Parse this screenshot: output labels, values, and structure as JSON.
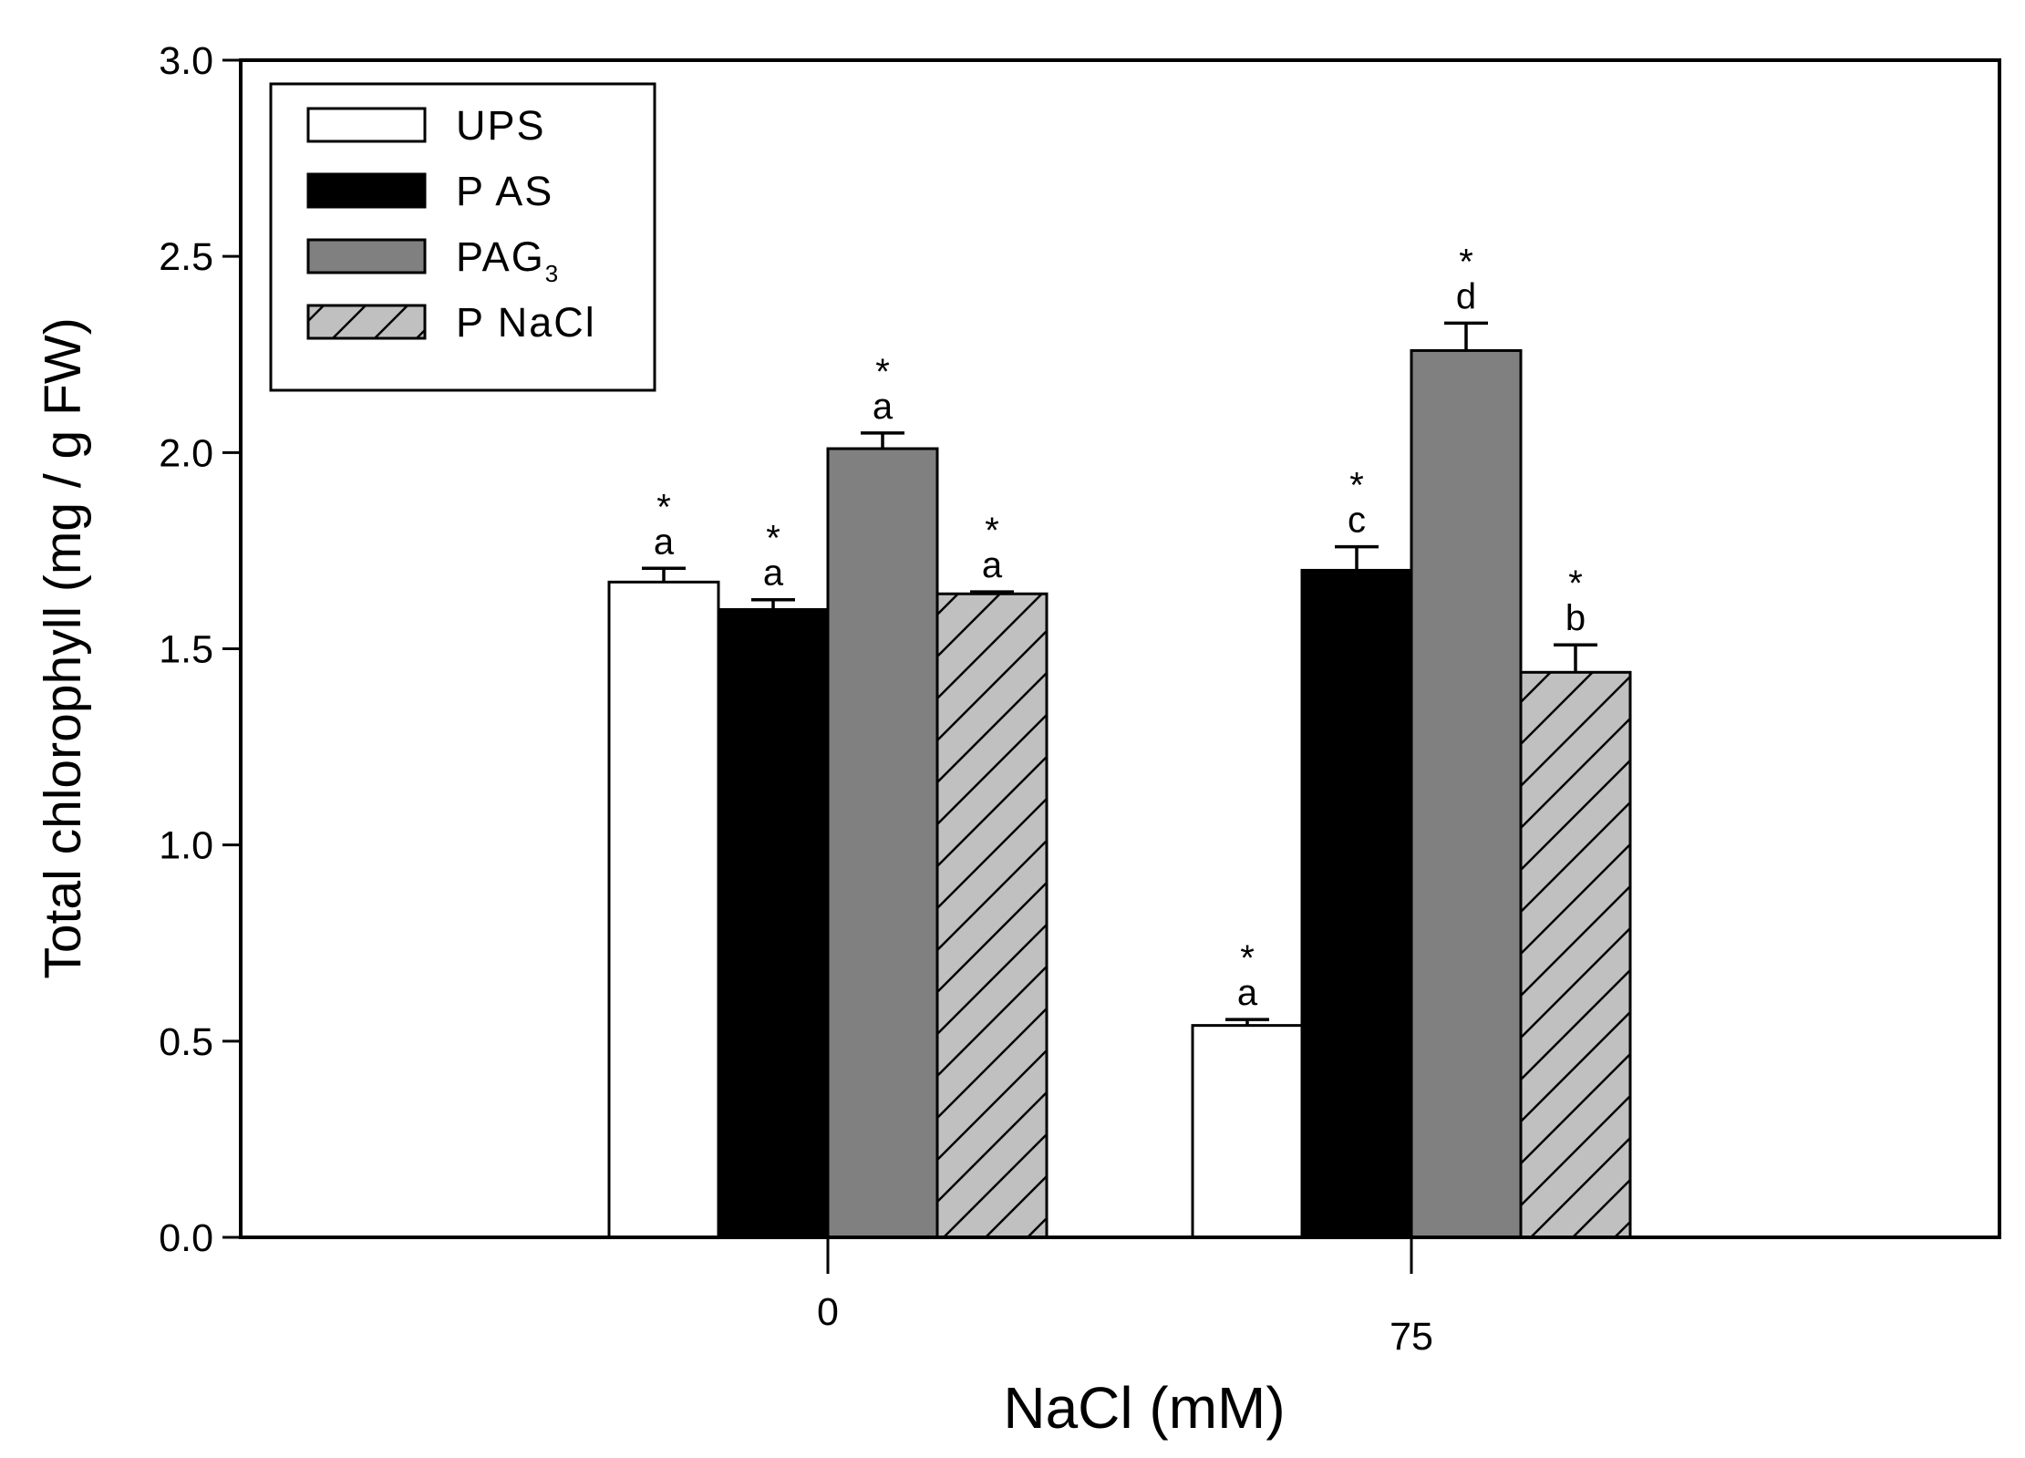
{
  "chart_data": {
    "type": "bar",
    "title": "",
    "xlabel": "NaCl (mM)",
    "ylabel": "Total chlorophyll (mg / g FW)",
    "ylim": [
      0,
      3.0
    ],
    "yticks": [
      0.0,
      0.5,
      1.0,
      1.5,
      2.0,
      2.5,
      3.0
    ],
    "ytick_labels": [
      "0.0",
      "0.5",
      "1.0",
      "1.5",
      "2.0",
      "2.5",
      "3.0"
    ],
    "categories": [
      "0",
      "75"
    ],
    "grid": false,
    "legend_position": "top-left",
    "series": [
      {
        "name": "UPS",
        "fill": "#ffffff",
        "hatch": false,
        "values": [
          1.67,
          0.54
        ],
        "errors": [
          0.035,
          0.015
        ],
        "letters": [
          "a",
          "a"
        ],
        "stars": [
          "*",
          "*"
        ]
      },
      {
        "name": "P AS",
        "fill": "#000000",
        "hatch": false,
        "values": [
          1.6,
          1.7
        ],
        "errors": [
          0.025,
          0.06
        ],
        "letters": [
          "a",
          "c"
        ],
        "stars": [
          "*",
          "*"
        ]
      },
      {
        "name": "PAG",
        "name_subscript": "3",
        "fill": "#808080",
        "hatch": false,
        "values": [
          2.01,
          2.26
        ],
        "errors": [
          0.04,
          0.07
        ],
        "letters": [
          "a",
          "d"
        ],
        "stars": [
          "*",
          "*"
        ]
      },
      {
        "name": "P NaCl",
        "fill": "#c0c0c0",
        "hatch": true,
        "values": [
          1.64,
          1.44
        ],
        "errors": [
          0.005,
          0.07
        ],
        "letters": [
          "a",
          "b"
        ],
        "stars": [
          "*",
          "*"
        ]
      }
    ]
  }
}
